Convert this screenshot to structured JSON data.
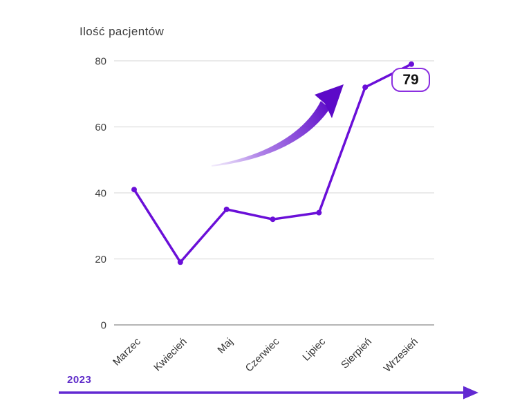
{
  "chart_data": {
    "type": "line",
    "title": "Ilość pacjentów",
    "categories": [
      "Marzec",
      "Kwiecień",
      "Maj",
      "Czerwiec",
      "Lipiec",
      "Sierpień",
      "Wrzesień"
    ],
    "values": [
      41,
      19,
      35,
      32,
      34,
      72,
      79
    ],
    "xlabel": "",
    "ylabel": "Ilość pacjentów",
    "ylim": [
      0,
      80
    ],
    "yticks": [
      0,
      20,
      40,
      60,
      80
    ],
    "grid": true,
    "legend": "none",
    "annotations": [
      {
        "type": "callout",
        "label": "79",
        "category": "Wrzesień"
      },
      {
        "type": "trend-arrow",
        "direction": "up"
      }
    ]
  },
  "timeline": {
    "year_label": "2023"
  },
  "colors": {
    "line": "#6a0fd8",
    "marker": "#6a0fd8",
    "swoosh": "#5c0ac8",
    "callout_border": "#8b2fe0",
    "accent": "#6229d2",
    "grid": "#e4e4e4",
    "zero_line": "#b5b5b5",
    "title_text": "#3c3c3c",
    "tick_text": "#3f3f3f",
    "xlabel_text": "#333333"
  }
}
